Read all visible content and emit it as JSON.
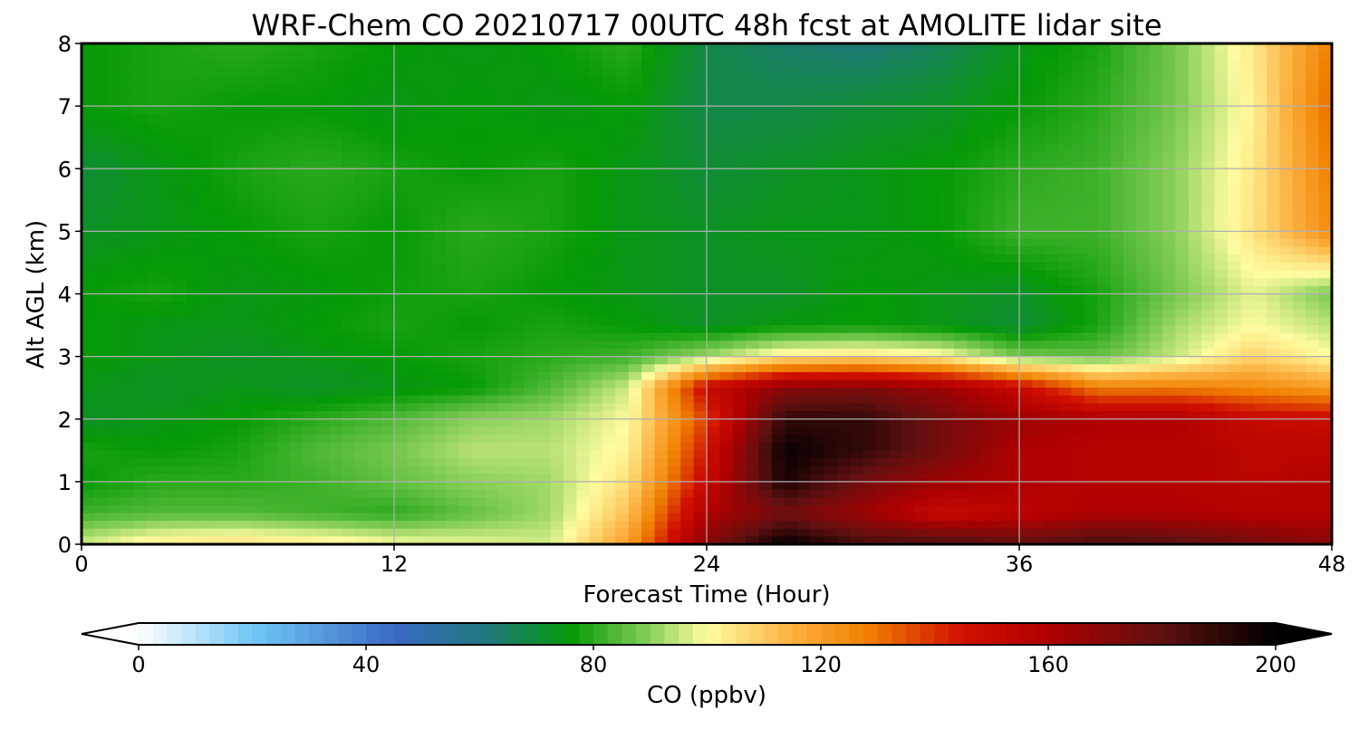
{
  "chart_data": {
    "type": "heatmap",
    "title": "WRF-Chem CO  20210717 00UTC 48h fcst at AMOLITE lidar site",
    "xlabel": "Forecast Time (Hour)",
    "ylabel": "Alt AGL (km)",
    "xlim": [
      0,
      48
    ],
    "ylim": [
      0,
      8
    ],
    "xticks": [
      0,
      12,
      24,
      36,
      48
    ],
    "yticks": [
      0,
      1,
      2,
      3,
      4,
      5,
      6,
      7,
      8
    ],
    "grid": true,
    "x": [
      0,
      3,
      6,
      9,
      12,
      15,
      18,
      21,
      24,
      27,
      30,
      33,
      36,
      39,
      42,
      45,
      48
    ],
    "y": [
      0,
      0.5,
      1,
      1.5,
      2,
      2.5,
      3,
      3.5,
      4,
      5,
      6,
      7,
      8
    ],
    "z": [
      [
        96,
        104,
        106,
        104,
        100,
        98,
        96,
        120,
        170,
        200,
        185,
        185,
        180,
        185,
        182,
        175,
        170
      ],
      [
        82,
        84,
        84,
        82,
        80,
        86,
        92,
        112,
        160,
        175,
        165,
        150,
        155,
        160,
        160,
        158,
        158
      ],
      [
        76,
        80,
        80,
        82,
        86,
        90,
        92,
        106,
        150,
        195,
        175,
        165,
        160,
        158,
        158,
        155,
        158
      ],
      [
        78,
        76,
        78,
        84,
        88,
        94,
        94,
        102,
        145,
        198,
        190,
        175,
        160,
        158,
        158,
        155,
        155
      ],
      [
        72,
        74,
        76,
        80,
        84,
        90,
        92,
        100,
        138,
        190,
        190,
        175,
        165,
        160,
        160,
        150,
        148
      ],
      [
        74,
        72,
        74,
        72,
        74,
        76,
        84,
        96,
        150,
        170,
        172,
        165,
        150,
        128,
        128,
        125,
        120
      ],
      [
        76,
        74,
        72,
        74,
        76,
        78,
        80,
        82,
        92,
        104,
        106,
        102,
        88,
        86,
        95,
        108,
        100
      ],
      [
        76,
        74,
        74,
        76,
        78,
        76,
        78,
        76,
        72,
        75,
        76,
        74,
        70,
        78,
        92,
        100,
        94
      ],
      [
        76,
        78,
        74,
        75,
        77,
        78,
        76,
        74,
        72,
        72,
        76,
        74,
        72,
        78,
        88,
        98,
        88
      ],
      [
        72,
        74,
        76,
        78,
        76,
        80,
        78,
        74,
        72,
        74,
        74,
        76,
        82,
        82,
        90,
        105,
        125
      ],
      [
        70,
        74,
        78,
        80,
        78,
        76,
        78,
        74,
        70,
        72,
        74,
        76,
        80,
        82,
        90,
        104,
        128
      ],
      [
        76,
        78,
        76,
        76,
        74,
        76,
        74,
        76,
        68,
        68,
        70,
        72,
        76,
        80,
        88,
        102,
        132
      ],
      [
        76,
        78,
        80,
        78,
        76,
        74,
        76,
        80,
        68,
        64,
        62,
        66,
        74,
        78,
        88,
        104,
        128
      ]
    ],
    "colorbar": {
      "label": "CO  (ppbv)",
      "min": 0,
      "max": 200,
      "ticks": [
        0,
        40,
        80,
        120,
        160,
        200
      ],
      "extend": "both"
    },
    "colormap": [
      {
        "v": 0,
        "c": "#ffffff"
      },
      {
        "v": 20,
        "c": "#70c8f5"
      },
      {
        "v": 45,
        "c": "#3a6ac4"
      },
      {
        "v": 62,
        "c": "#1f7a7a"
      },
      {
        "v": 76,
        "c": "#059a05"
      },
      {
        "v": 90,
        "c": "#8ad05a"
      },
      {
        "v": 100,
        "c": "#fffca0"
      },
      {
        "v": 115,
        "c": "#fcb040"
      },
      {
        "v": 128,
        "c": "#f08000"
      },
      {
        "v": 145,
        "c": "#d01000"
      },
      {
        "v": 160,
        "c": "#b00000"
      },
      {
        "v": 180,
        "c": "#601010"
      },
      {
        "v": 200,
        "c": "#000000"
      }
    ]
  }
}
